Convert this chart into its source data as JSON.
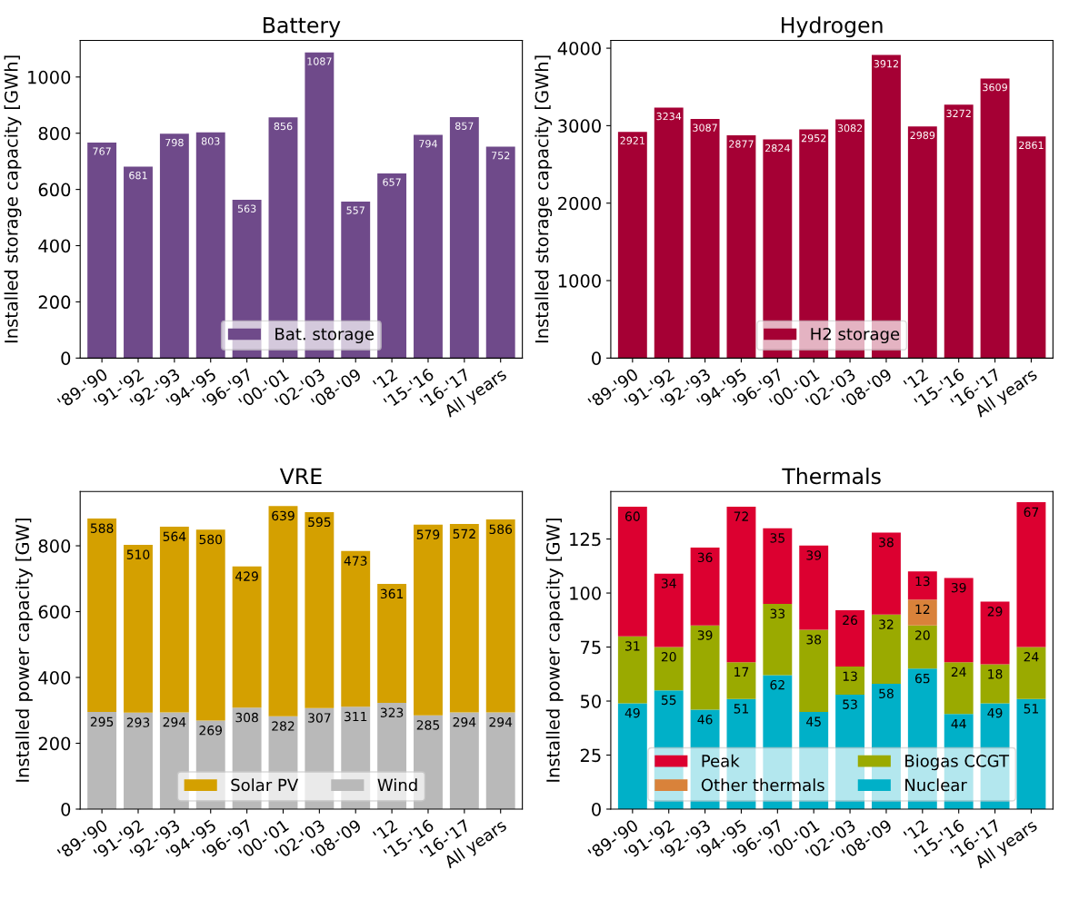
{
  "chart_data": [
    {
      "type": "bar",
      "title": "Battery",
      "ylabel": "Installed storage capacity [GWh]",
      "categories": [
        "'89-'90",
        "'91-'92",
        "'92-'93",
        "'94-'95",
        "'96-'97",
        "'00-'01",
        "'02-'03",
        "'08-'09",
        "'12",
        "'15-'16",
        "'16-'17",
        "All years"
      ],
      "series": [
        {
          "name": "Bat. storage",
          "color": "#6f4a8a",
          "values": [
            767,
            681,
            798,
            803,
            563,
            856,
            1087,
            557,
            657,
            794,
            857,
            752
          ]
        }
      ],
      "ylim": [
        0,
        1130
      ],
      "yticks": [
        0,
        200,
        400,
        600,
        800,
        1000
      ],
      "legend": "bottom",
      "data_labels": true
    },
    {
      "type": "bar",
      "title": "Hydrogen",
      "ylabel": "Installed storage capacity [GWh]",
      "categories": [
        "'89-'90",
        "'91-'92",
        "'92-'93",
        "'94-'95",
        "'96-'97",
        "'00-'01",
        "'02-'03",
        "'08-'09",
        "'12",
        "'15-'16",
        "'16-'17",
        "All years"
      ],
      "series": [
        {
          "name": "H2 storage",
          "color": "#a50034",
          "values": [
            2921,
            3234,
            3087,
            2877,
            2824,
            2952,
            3082,
            3912,
            2989,
            3272,
            3609,
            2861
          ]
        }
      ],
      "ylim": [
        0,
        4100
      ],
      "yticks": [
        0,
        1000,
        2000,
        3000,
        4000
      ],
      "legend": "bottom",
      "data_labels": true
    },
    {
      "type": "bar",
      "title": "VRE",
      "ylabel": "Installed power capacity [GW]",
      "stacked": true,
      "categories": [
        "'89-'90",
        "'91-'92",
        "'92-'93",
        "'94-'95",
        "'96-'97",
        "'00-'01",
        "'02-'03",
        "'08-'09",
        "'12",
        "'15-'16",
        "'16-'17",
        "All years"
      ],
      "series": [
        {
          "name": "Wind",
          "color": "#b9b9b9",
          "values": [
            295,
            293,
            294,
            269,
            308,
            282,
            307,
            311,
            323,
            285,
            294,
            294
          ]
        },
        {
          "name": "Solar PV",
          "color": "#d4a000",
          "values": [
            588,
            510,
            564,
            580,
            429,
            639,
            595,
            473,
            361,
            579,
            572,
            586
          ]
        }
      ],
      "ylim": [
        0,
        965
      ],
      "yticks": [
        0,
        200,
        400,
        600,
        800
      ],
      "legend": "bottom",
      "data_labels": true
    },
    {
      "type": "bar",
      "title": "Thermals",
      "ylabel": "Installed power capacity [GW]",
      "stacked": true,
      "categories": [
        "'89-'90",
        "'91-'92",
        "'92-'93",
        "'94-'95",
        "'96-'97",
        "'00-'01",
        "'02-'03",
        "'08-'09",
        "'12",
        "'15-'16",
        "'16-'17",
        "All years"
      ],
      "series": [
        {
          "name": "Nuclear",
          "color": "#00b0c8",
          "values": [
            49,
            55,
            46,
            51,
            62,
            45,
            53,
            58,
            65,
            44,
            49,
            51
          ],
          "value_labels": [
            "49",
            "55",
            "46",
            "51",
            "62",
            "45",
            "53",
            "58",
            "65",
            "44",
            "49",
            "51"
          ]
        },
        {
          "name": "Biogas CCGT",
          "color": "#9aaa00",
          "values": [
            31,
            20,
            39,
            17,
            33,
            38,
            13,
            32,
            20,
            24,
            18,
            24
          ],
          "value_labels": [
            "31",
            "20",
            "39",
            "17",
            "33",
            "38",
            "13",
            "32",
            "20",
            "24",
            "18",
            "24"
          ]
        },
        {
          "name": "Other thermals",
          "color": "#d9823a",
          "values": [
            0,
            0,
            0,
            0,
            0,
            0,
            0,
            0,
            12,
            0,
            0,
            0
          ],
          "value_labels": [
            null,
            null,
            null,
            null,
            null,
            null,
            null,
            null,
            "12",
            null,
            null,
            null
          ]
        },
        {
          "name": "Peak",
          "color": "#dc0030",
          "values": [
            60,
            34,
            36,
            72,
            35,
            39,
            26,
            38,
            13,
            39,
            29,
            67
          ],
          "value_labels": [
            "60",
            "34",
            "36",
            "72",
            "35",
            "39",
            "26",
            "38",
            "13",
            "39",
            "29",
            "67"
          ]
        }
      ],
      "ylim": [
        0,
        147
      ],
      "yticks": [
        0,
        25,
        50,
        75,
        100,
        125
      ],
      "legend": "bottom"
    }
  ]
}
